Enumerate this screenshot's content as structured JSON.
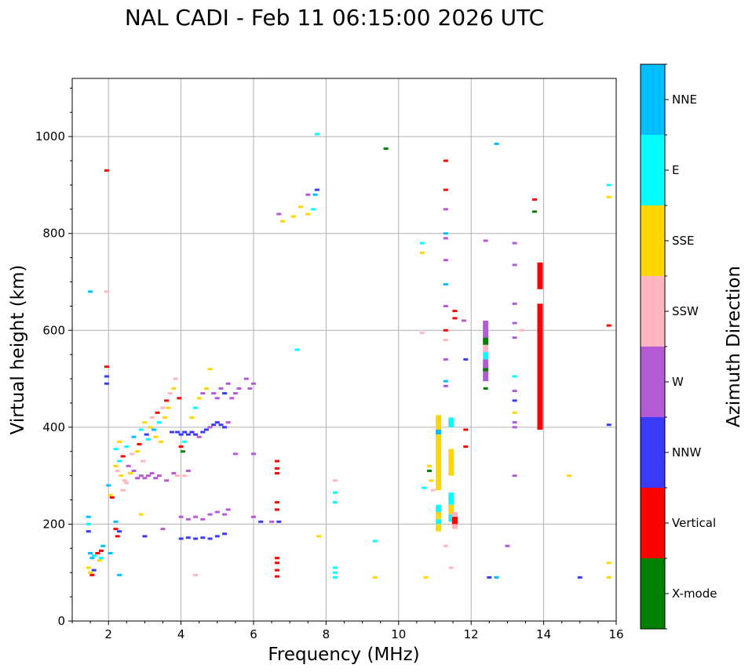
{
  "chart_data": {
    "type": "scatter",
    "title": "NAL CADI - Feb 11 06:15:00 2026 UTC",
    "xlabel": "Frequency (MHz)",
    "ylabel": "Virtual height (km)",
    "xlim": [
      1,
      16
    ],
    "ylim": [
      0,
      1120
    ],
    "xticks": [
      2,
      4,
      6,
      8,
      10,
      12,
      14,
      16
    ],
    "yticks": [
      0,
      200,
      400,
      600,
      800,
      1000
    ],
    "grid": true,
    "colorbar": {
      "label": "Azimuth Direction",
      "categories": [
        "X-mode",
        "Vertical",
        "NNW",
        "W",
        "SSW",
        "SSE",
        "E",
        "NNE"
      ],
      "colors": [
        "#008000",
        "#ff0000",
        "#3a3aff",
        "#b45ad6",
        "#ffb6c1",
        "#ffd700",
        "#00ffff",
        "#00bfff"
      ]
    },
    "points": [
      [
        1.45,
        215,
        "NNE"
      ],
      [
        1.45,
        200,
        "E"
      ],
      [
        1.45,
        185,
        "NNW"
      ],
      [
        1.5,
        140,
        "NNE"
      ],
      [
        1.55,
        130,
        "NNE"
      ],
      [
        1.6,
        135,
        "E"
      ],
      [
        1.7,
        140,
        "Vertical"
      ],
      [
        1.8,
        145,
        "Vertical"
      ],
      [
        1.75,
        125,
        "SSE"
      ],
      [
        1.8,
        130,
        "E"
      ],
      [
        1.85,
        155,
        "NNE"
      ],
      [
        1.5,
        100,
        "SSE"
      ],
      [
        1.55,
        95,
        "Vertical"
      ],
      [
        1.6,
        105,
        "NNW"
      ],
      [
        1.45,
        110,
        "SSE"
      ],
      [
        1.5,
        680,
        "NNE"
      ],
      [
        1.95,
        680,
        "SSW"
      ],
      [
        1.95,
        525,
        "Vertical"
      ],
      [
        1.95,
        505,
        "NNW"
      ],
      [
        1.95,
        490,
        "NNW"
      ],
      [
        1.95,
        930,
        "Vertical"
      ],
      [
        2.0,
        280,
        "NNE"
      ],
      [
        2.05,
        260,
        "SSE"
      ],
      [
        2.1,
        255,
        "Vertical"
      ],
      [
        2.2,
        190,
        "Vertical"
      ],
      [
        2.25,
        175,
        "Vertical"
      ],
      [
        2.3,
        95,
        "NNE"
      ],
      [
        2.3,
        185,
        "NNW"
      ],
      [
        2.05,
        140,
        "NNE"
      ],
      [
        2.2,
        205,
        "NNE"
      ],
      [
        2.2,
        320,
        "SSE"
      ],
      [
        2.25,
        310,
        "SSW"
      ],
      [
        2.3,
        330,
        "E"
      ],
      [
        2.35,
        300,
        "SSE"
      ],
      [
        2.4,
        340,
        "Vertical"
      ],
      [
        2.45,
        290,
        "SSW"
      ],
      [
        2.5,
        360,
        "E"
      ],
      [
        2.55,
        320,
        "W"
      ],
      [
        2.6,
        305,
        "SSE"
      ],
      [
        2.65,
        345,
        "SSW"
      ],
      [
        2.2,
        355,
        "E"
      ],
      [
        2.3,
        370,
        "SSE"
      ],
      [
        2.7,
        380,
        "NNE"
      ],
      [
        2.8,
        350,
        "SSE"
      ],
      [
        2.85,
        365,
        "Vertical"
      ],
      [
        2.9,
        395,
        "E"
      ],
      [
        2.95,
        330,
        "SSW"
      ],
      [
        3.0,
        410,
        "SSE"
      ],
      [
        3.05,
        385,
        "NNW"
      ],
      [
        3.1,
        375,
        "E"
      ],
      [
        3.15,
        400,
        "SSE"
      ],
      [
        3.2,
        420,
        "SSW"
      ],
      [
        3.25,
        395,
        "NNE"
      ],
      [
        3.3,
        380,
        "SSE"
      ],
      [
        3.35,
        430,
        "Vertical"
      ],
      [
        3.4,
        410,
        "E"
      ],
      [
        3.45,
        370,
        "SSE"
      ],
      [
        3.5,
        440,
        "SSW"
      ],
      [
        3.55,
        420,
        "SSE"
      ],
      [
        3.6,
        455,
        "Vertical"
      ],
      [
        3.65,
        440,
        "SSE"
      ],
      [
        3.7,
        470,
        "SSW"
      ],
      [
        3.75,
        390,
        "NNW"
      ],
      [
        3.8,
        480,
        "SSE"
      ],
      [
        3.85,
        500,
        "SSW"
      ],
      [
        3.95,
        460,
        "Vertical"
      ],
      [
        2.4,
        270,
        "SSW"
      ],
      [
        2.5,
        285,
        "SSW"
      ],
      [
        2.7,
        310,
        "W"
      ],
      [
        2.8,
        295,
        "W"
      ],
      [
        2.9,
        300,
        "W"
      ],
      [
        3.0,
        295,
        "W"
      ],
      [
        3.1,
        300,
        "W"
      ],
      [
        3.2,
        305,
        "W"
      ],
      [
        3.3,
        295,
        "W"
      ],
      [
        3.4,
        300,
        "W"
      ],
      [
        3.6,
        290,
        "W"
      ],
      [
        3.8,
        305,
        "W"
      ],
      [
        3.9,
        300,
        "SSW"
      ],
      [
        4.1,
        300,
        "SSW"
      ],
      [
        4.2,
        310,
        "W"
      ],
      [
        3.9,
        390,
        "NNW"
      ],
      [
        4.0,
        385,
        "NNW"
      ],
      [
        4.1,
        390,
        "NNW"
      ],
      [
        4.2,
        385,
        "NNW"
      ],
      [
        4.3,
        390,
        "NNW"
      ],
      [
        4.4,
        385,
        "NNW"
      ],
      [
        4.5,
        380,
        "W"
      ],
      [
        4.6,
        390,
        "NNW"
      ],
      [
        4.7,
        395,
        "NNW"
      ],
      [
        4.8,
        400,
        "W"
      ],
      [
        4.9,
        405,
        "NNW"
      ],
      [
        5.0,
        410,
        "NNW"
      ],
      [
        5.1,
        405,
        "NNW"
      ],
      [
        5.2,
        400,
        "NNW"
      ],
      [
        5.3,
        410,
        "W"
      ],
      [
        4.0,
        360,
        "Vertical"
      ],
      [
        4.05,
        350,
        "X-mode"
      ],
      [
        4.1,
        370,
        "E"
      ],
      [
        4.3,
        420,
        "SSE"
      ],
      [
        4.4,
        440,
        "E"
      ],
      [
        4.5,
        460,
        "SSE"
      ],
      [
        4.6,
        470,
        "W"
      ],
      [
        4.7,
        480,
        "SSE"
      ],
      [
        4.8,
        520,
        "SSE"
      ],
      [
        4.9,
        470,
        "W"
      ],
      [
        5.0,
        460,
        "W"
      ],
      [
        5.1,
        480,
        "W"
      ],
      [
        5.2,
        470,
        "NNW"
      ],
      [
        5.3,
        490,
        "W"
      ],
      [
        5.4,
        460,
        "W"
      ],
      [
        5.5,
        470,
        "W"
      ],
      [
        5.6,
        480,
        "W"
      ],
      [
        5.8,
        500,
        "W"
      ],
      [
        5.9,
        480,
        "W"
      ],
      [
        6.0,
        490,
        "W"
      ],
      [
        4.0,
        215,
        "W"
      ],
      [
        4.2,
        210,
        "W"
      ],
      [
        4.4,
        215,
        "W"
      ],
      [
        4.6,
        210,
        "W"
      ],
      [
        4.8,
        220,
        "W"
      ],
      [
        5.0,
        225,
        "W"
      ],
      [
        5.2,
        220,
        "W"
      ],
      [
        5.3,
        230,
        "W"
      ],
      [
        4.0,
        170,
        "NNW"
      ],
      [
        4.2,
        172,
        "NNW"
      ],
      [
        4.4,
        170,
        "NNW"
      ],
      [
        4.6,
        172,
        "NNW"
      ],
      [
        4.8,
        170,
        "NNW"
      ],
      [
        5.0,
        175,
        "NNW"
      ],
      [
        5.2,
        180,
        "NNW"
      ],
      [
        4.4,
        95,
        "SSW"
      ],
      [
        3.0,
        175,
        "NNW"
      ],
      [
        3.5,
        190,
        "W"
      ],
      [
        2.9,
        220,
        "SSE"
      ],
      [
        5.5,
        345,
        "W"
      ],
      [
        6.0,
        345,
        "W"
      ],
      [
        6.0,
        215,
        "W"
      ],
      [
        6.2,
        205,
        "NNW"
      ],
      [
        6.5,
        205,
        "W"
      ],
      [
        6.7,
        205,
        "NNW"
      ],
      [
        6.65,
        330,
        "Vertical"
      ],
      [
        6.65,
        315,
        "Vertical"
      ],
      [
        6.65,
        305,
        "Vertical"
      ],
      [
        6.65,
        245,
        "Vertical"
      ],
      [
        6.65,
        230,
        "Vertical"
      ],
      [
        6.65,
        130,
        "Vertical"
      ],
      [
        6.65,
        120,
        "Vertical"
      ],
      [
        6.65,
        105,
        "Vertical"
      ],
      [
        6.65,
        92,
        "Vertical"
      ],
      [
        6.8,
        825,
        "SSE"
      ],
      [
        6.7,
        840,
        "W"
      ],
      [
        7.1,
        835,
        "SSE"
      ],
      [
        7.3,
        855,
        "SSE"
      ],
      [
        7.5,
        840,
        "SSE"
      ],
      [
        7.65,
        850,
        "E"
      ],
      [
        7.7,
        880,
        "NNE"
      ],
      [
        7.75,
        890,
        "NNW"
      ],
      [
        7.5,
        880,
        "W"
      ],
      [
        7.75,
        1005,
        "E"
      ],
      [
        7.2,
        560,
        "E"
      ],
      [
        7.8,
        175,
        "SSE"
      ],
      [
        8.25,
        110,
        "E"
      ],
      [
        8.25,
        100,
        "E"
      ],
      [
        8.25,
        90,
        "E"
      ],
      [
        8.25,
        290,
        "SSW"
      ],
      [
        8.25,
        265,
        "E"
      ],
      [
        8.25,
        245,
        "E"
      ],
      [
        9.35,
        165,
        "E"
      ],
      [
        9.35,
        90,
        "SSE"
      ],
      [
        9.65,
        975,
        "X-mode"
      ],
      [
        10.65,
        780,
        "E"
      ],
      [
        10.65,
        760,
        "SSE"
      ],
      [
        10.65,
        595,
        "SSW"
      ],
      [
        10.7,
        275,
        "E"
      ],
      [
        10.75,
        90,
        "SSE"
      ],
      [
        10.85,
        320,
        "SSE"
      ],
      [
        10.85,
        310,
        "X-mode"
      ],
      [
        10.9,
        290,
        "SSE"
      ],
      [
        10.95,
        270,
        "SSW"
      ],
      [
        11.3,
        950,
        "Vertical"
      ],
      [
        11.3,
        890,
        "Vertical"
      ],
      [
        11.3,
        850,
        "W"
      ],
      [
        11.3,
        800,
        "NNE"
      ],
      [
        11.3,
        790,
        "W"
      ],
      [
        11.3,
        745,
        "W"
      ],
      [
        11.3,
        695,
        "NNE"
      ],
      [
        11.3,
        650,
        "W"
      ],
      [
        11.3,
        600,
        "Vertical"
      ],
      [
        11.3,
        580,
        "SSW"
      ],
      [
        11.3,
        540,
        "W"
      ],
      [
        11.3,
        495,
        "NNE"
      ],
      [
        11.3,
        485,
        "W"
      ],
      [
        11.55,
        640,
        "Vertical"
      ],
      [
        11.55,
        625,
        "Vertical"
      ],
      [
        11.8,
        620,
        "W"
      ],
      [
        11.85,
        540,
        "NNW"
      ],
      [
        11.85,
        395,
        "Vertical"
      ],
      [
        11.85,
        360,
        "Vertical"
      ],
      [
        11.45,
        110,
        "SSW"
      ],
      [
        11.3,
        155,
        "SSW"
      ],
      [
        12.4,
        785,
        "W"
      ],
      [
        12.4,
        480,
        "X-mode"
      ],
      [
        12.7,
        985,
        "NNE"
      ],
      [
        12.7,
        90,
        "NNE"
      ],
      [
        12.5,
        90,
        "NNW"
      ],
      [
        13.2,
        780,
        "W"
      ],
      [
        13.2,
        735,
        "W"
      ],
      [
        13.2,
        655,
        "W"
      ],
      [
        13.2,
        615,
        "W"
      ],
      [
        13.2,
        585,
        "W"
      ],
      [
        13.2,
        505,
        "E"
      ],
      [
        13.2,
        475,
        "W"
      ],
      [
        13.2,
        455,
        "NNW"
      ],
      [
        13.2,
        430,
        "SSE"
      ],
      [
        13.2,
        410,
        "W"
      ],
      [
        13.2,
        400,
        "W"
      ],
      [
        13.2,
        300,
        "W"
      ],
      [
        13.0,
        155,
        "W"
      ],
      [
        13.4,
        600,
        "SSW"
      ],
      [
        13.75,
        870,
        "Vertical"
      ],
      [
        13.75,
        845,
        "X-mode"
      ],
      [
        14.7,
        300,
        "SSE"
      ],
      [
        15.0,
        90,
        "NNW"
      ],
      [
        15.8,
        900,
        "E"
      ],
      [
        15.8,
        875,
        "SSE"
      ],
      [
        15.8,
        610,
        "Vertical"
      ],
      [
        15.8,
        405,
        "NNW"
      ],
      [
        15.8,
        120,
        "SSE"
      ],
      [
        15.8,
        90,
        "SSE"
      ]
    ],
    "columns": [
      {
        "x": 11.1,
        "segments": [
          [
            390,
            425,
            "SSE"
          ],
          [
            385,
            395,
            "NNE"
          ],
          [
            270,
            385,
            "SSE"
          ],
          [
            225,
            240,
            "E"
          ],
          [
            210,
            225,
            "SSE"
          ],
          [
            200,
            210,
            "E"
          ],
          [
            185,
            200,
            "SSE"
          ]
        ]
      },
      {
        "x": 11.45,
        "segments": [
          [
            400,
            420,
            "E"
          ],
          [
            330,
            355,
            "SSE"
          ],
          [
            300,
            330,
            "SSE"
          ],
          [
            240,
            265,
            "E"
          ],
          [
            220,
            240,
            "SSE"
          ],
          [
            205,
            220,
            "E"
          ]
        ]
      },
      {
        "x": 11.55,
        "segments": [
          [
            190,
            225,
            "SSW"
          ],
          [
            200,
            215,
            "Vertical"
          ]
        ]
      },
      {
        "x": 12.4,
        "segments": [
          [
            600,
            620,
            "W"
          ],
          [
            585,
            600,
            "W"
          ],
          [
            570,
            585,
            "X-mode"
          ],
          [
            555,
            570,
            "SSW"
          ],
          [
            540,
            555,
            "E"
          ],
          [
            520,
            540,
            "W"
          ],
          [
            515,
            522,
            "X-mode"
          ],
          [
            495,
            515,
            "W"
          ]
        ]
      },
      {
        "x": 13.9,
        "segments": [
          [
            685,
            740,
            "Vertical"
          ],
          [
            395,
            655,
            "Vertical"
          ]
        ]
      }
    ]
  }
}
